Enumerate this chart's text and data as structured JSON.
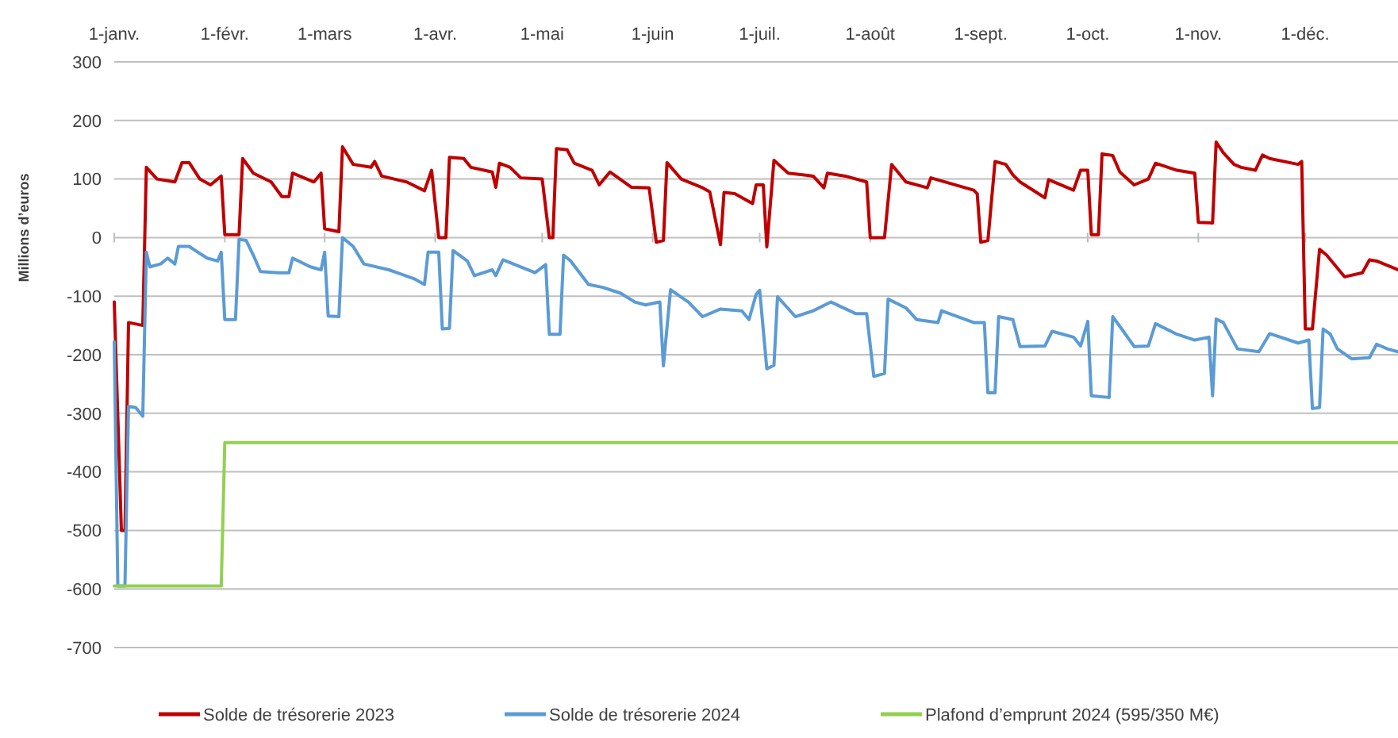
{
  "chart_data": {
    "type": "line",
    "ylabel": "Millions d’euros",
    "xlim": [
      "--01-01",
      "--12-27"
    ],
    "ylim": [
      -700,
      300
    ],
    "yticks": [
      -700,
      -600,
      -500,
      -400,
      -300,
      -200,
      -100,
      0,
      100,
      200,
      300
    ],
    "xticks": [
      {
        "value": "--01-01",
        "label": "1-janv."
      },
      {
        "value": "--02-01",
        "label": "1-févr."
      },
      {
        "value": "--03-01",
        "label": "1-mars"
      },
      {
        "value": "--04-01",
        "label": "1-avr."
      },
      {
        "value": "--05-01",
        "label": "1-mai"
      },
      {
        "value": "--06-01",
        "label": "1-juin"
      },
      {
        "value": "--07-01",
        "label": "1-juil."
      },
      {
        "value": "--08-01",
        "label": "1-août"
      },
      {
        "value": "--09-01",
        "label": "1-sept."
      },
      {
        "value": "--10-01",
        "label": "1-oct."
      },
      {
        "value": "--11-01",
        "label": "1-nov."
      },
      {
        "value": "--12-01",
        "label": "1-déc."
      }
    ],
    "grid": "y",
    "legend": "bottom",
    "marker": "none",
    "line_style": "solid",
    "series": [
      {
        "name": "Solde de trésorerie 2023",
        "color": "#c00000",
        "x": [
          "--01-01",
          "--01-03",
          "--01-04",
          "--01-05",
          "--01-09",
          "--01-10",
          "--01-13",
          "--01-18",
          "--01-20",
          "--01-22",
          "--01-25",
          "--01-28",
          "--01-31",
          "--02-01",
          "--02-05",
          "--02-06",
          "--02-09",
          "--02-14",
          "--02-17",
          "--02-19",
          "--02-20",
          "--02-26",
          "--02-28",
          "--03-01",
          "--03-05",
          "--03-06",
          "--03-09",
          "--03-14",
          "--03-15",
          "--03-17",
          "--03-24",
          "--03-29",
          "--03-31",
          "--04-02",
          "--04-04",
          "--04-05",
          "--04-09",
          "--04-11",
          "--04-17",
          "--04-18",
          "--04-19",
          "--04-22",
          "--04-25",
          "--05-01",
          "--05-03",
          "--05-04",
          "--05-05",
          "--05-08",
          "--05-10",
          "--05-15",
          "--05-17",
          "--05-20",
          "--05-26",
          "--05-31",
          "--06-02",
          "--06-04",
          "--06-05",
          "--06-09",
          "--06-15",
          "--06-17",
          "--06-20",
          "--06-21",
          "--06-24",
          "--06-29",
          "--06-30",
          "--07-02",
          "--07-03",
          "--07-05",
          "--07-09",
          "--07-16",
          "--07-19",
          "--07-20",
          "--07-25",
          "--07-31",
          "--08-01",
          "--08-05",
          "--08-07",
          "--08-11",
          "--08-17",
          "--08-18",
          "--08-30",
          "--08-31",
          "--09-01",
          "--09-03",
          "--09-05",
          "--09-08",
          "--09-10",
          "--09-12",
          "--09-19",
          "--09-20",
          "--09-27",
          "--09-29",
          "--10-01",
          "--10-02",
          "--10-04",
          "--10-05",
          "--10-08",
          "--10-10",
          "--10-14",
          "--10-18",
          "--10-20",
          "--10-26",
          "--10-31",
          "--11-01",
          "--11-05",
          "--11-06",
          "--11-08",
          "--11-11",
          "--11-13",
          "--11-17",
          "--11-19",
          "--11-21",
          "--11-29",
          "--11-30",
          "--12-01",
          "--12-03",
          "--12-05",
          "--12-07",
          "--12-12",
          "--12-17",
          "--12-19",
          "--12-21",
          "--12-27"
        ],
        "values": [
          -110,
          -500,
          -500,
          -145,
          -150,
          120,
          100,
          95,
          128,
          128,
          100,
          90,
          105,
          5,
          5,
          135,
          110,
          95,
          70,
          70,
          110,
          95,
          110,
          15,
          10,
          155,
          125,
          120,
          130,
          105,
          95,
          80,
          115,
          0,
          0,
          137,
          135,
          120,
          112,
          86,
          127,
          120,
          102,
          100,
          0,
          0,
          152,
          150,
          127,
          115,
          90,
          112,
          86,
          85,
          -8,
          -5,
          128,
          100,
          85,
          78,
          -12,
          77,
          75,
          58,
          90,
          90,
          -16,
          132,
          110,
          105,
          85,
          110,
          105,
          95,
          0,
          0,
          125,
          95,
          85,
          102,
          81,
          75,
          -8,
          -5,
          130,
          125,
          107,
          95,
          68,
          99,
          81,
          115,
          115,
          5,
          5,
          143,
          140,
          112,
          90,
          100,
          127,
          115,
          110,
          26,
          25,
          163,
          145,
          125,
          120,
          115,
          141,
          135,
          125,
          130,
          -156,
          -156,
          -20,
          -30,
          -67,
          -60,
          -38,
          -40,
          -55
        ]
      },
      {
        "name": "Solde de trésorerie 2024",
        "color": "#5b9bd5",
        "x": [
          "--01-01",
          "--01-02",
          "--01-04",
          "--01-05",
          "--01-07",
          "--01-09",
          "--01-10",
          "--01-11",
          "--01-14",
          "--01-16",
          "--01-18",
          "--01-19",
          "--01-22",
          "--01-27",
          "--01-30",
          "--01-31",
          "--02-01",
          "--02-04",
          "--02-05",
          "--02-07",
          "--02-09",
          "--02-11",
          "--02-16",
          "--02-19",
          "--02-20",
          "--02-25",
          "--02-28",
          "--03-01",
          "--03-02",
          "--03-05",
          "--03-06",
          "--03-09",
          "--03-12",
          "--03-19",
          "--03-26",
          "--03-29",
          "--03-30",
          "--04-02",
          "--04-03",
          "--04-05",
          "--04-06",
          "--04-10",
          "--04-12",
          "--04-17",
          "--04-18",
          "--04-20",
          "--04-25",
          "--04-29",
          "--05-02",
          "--05-03",
          "--05-06",
          "--05-07",
          "--05-09",
          "--05-14",
          "--05-18",
          "--05-23",
          "--05-27",
          "--05-30",
          "--06-03",
          "--06-04",
          "--06-06",
          "--06-11",
          "--06-15",
          "--06-20",
          "--06-26",
          "--06-28",
          "--06-30",
          "--07-01",
          "--07-03",
          "--07-05",
          "--07-06",
          "--07-11",
          "--07-16",
          "--07-21",
          "--07-28",
          "--07-31",
          "--08-02",
          "--08-05",
          "--08-06",
          "--08-11",
          "--08-14",
          "--08-20",
          "--08-21",
          "--08-30",
          "--09-02",
          "--09-03",
          "--09-05",
          "--09-06",
          "--09-10",
          "--09-12",
          "--09-19",
          "--09-21",
          "--09-27",
          "--09-29",
          "--10-01",
          "--10-02",
          "--10-07",
          "--10-08",
          "--10-11",
          "--10-14",
          "--10-18",
          "--10-20",
          "--10-26",
          "--10-31",
          "--11-04",
          "--11-05",
          "--11-06",
          "--11-08",
          "--11-12",
          "--11-18",
          "--11-21",
          "--11-29",
          "--12-02",
          "--12-03",
          "--12-05",
          "--12-06",
          "--12-08",
          "--12-10",
          "--12-14",
          "--12-19",
          "--12-21",
          "--12-24",
          "--12-27"
        ],
        "values": [
          -178,
          -595,
          -595,
          -288,
          -290,
          -305,
          -25,
          -50,
          -45,
          -35,
          -45,
          -15,
          -15,
          -35,
          -40,
          -25,
          -140,
          -140,
          -3,
          -5,
          -30,
          -58,
          -60,
          -60,
          -35,
          -50,
          -55,
          -25,
          -134,
          -135,
          0,
          -15,
          -45,
          -55,
          -70,
          -80,
          -25,
          -25,
          -156,
          -155,
          -22,
          -40,
          -65,
          -55,
          -65,
          -38,
          -50,
          -60,
          -46,
          -165,
          -165,
          -30,
          -40,
          -80,
          -85,
          -95,
          -110,
          -115,
          -110,
          -219,
          -89,
          -110,
          -135,
          -122,
          -125,
          -140,
          -97,
          -90,
          -224,
          -218,
          -101,
          -135,
          -125,
          -110,
          -130,
          -130,
          -237,
          -232,
          -105,
          -120,
          -140,
          -145,
          -125,
          -145,
          -145,
          -265,
          -265,
          -135,
          -140,
          -186,
          -185,
          -160,
          -170,
          -185,
          -143,
          -270,
          -273,
          -135,
          -160,
          -186,
          -185,
          -147,
          -165,
          -175,
          -170,
          -270,
          -139,
          -145,
          -190,
          -195,
          -164,
          -180,
          -175,
          -292,
          -290,
          -156,
          -165,
          -190,
          -207,
          -205,
          -182,
          -190,
          -195
        ]
      },
      {
        "name": "Plafond d’emprunt 2024 (595/350 M€)",
        "color": "#92d050",
        "x": [
          "--01-01",
          "--01-31",
          "--02-01",
          "--12-27"
        ],
        "values": [
          -595,
          -595,
          -350,
          -350
        ]
      }
    ]
  }
}
